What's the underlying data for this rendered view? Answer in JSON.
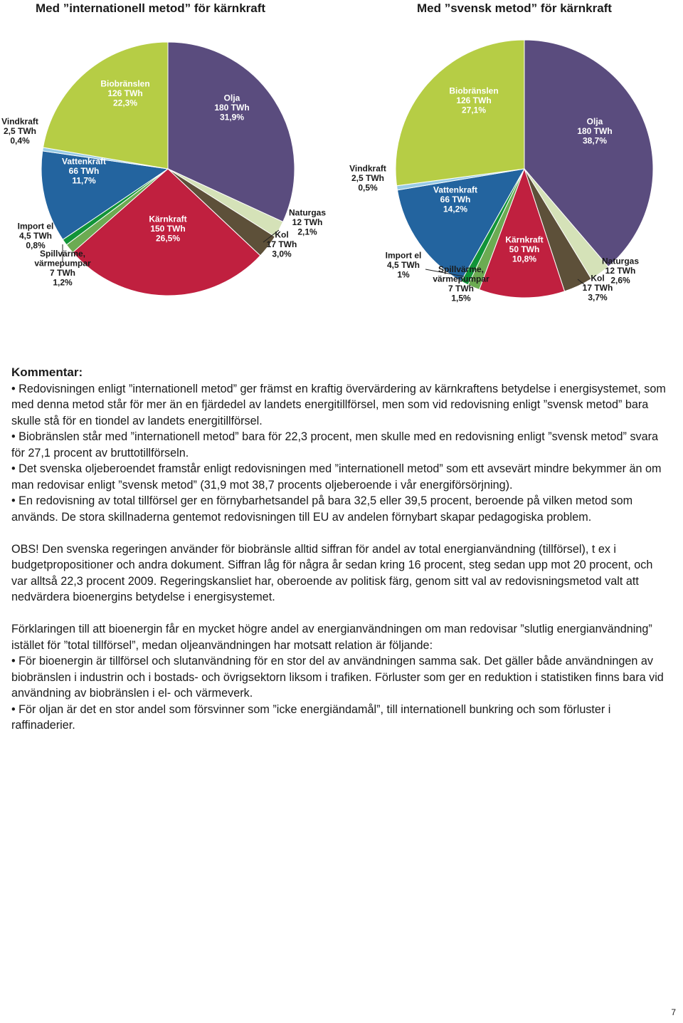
{
  "chart_data": [
    {
      "type": "pie",
      "title": "Med ”internationell metod” för kärnkraft",
      "unit": "TWh",
      "slices": [
        {
          "name": "Olja",
          "value": 180,
          "label_value": "180 TWh",
          "percent": 31.9,
          "percent_text": "31,9%",
          "color": "#5a4c7e"
        },
        {
          "name": "Naturgas",
          "value": 12,
          "label_value": "12 TWh",
          "percent": 2.1,
          "percent_text": "2,1%",
          "color": "#d5e2b8"
        },
        {
          "name": "Kol",
          "value": 17,
          "label_value": "17 TWh",
          "percent": 3.0,
          "percent_text": "3,0%",
          "color": "#5d5039"
        },
        {
          "name": "Kärnkraft",
          "value": 150,
          "label_value": "150 TWh",
          "percent": 26.5,
          "percent_text": "26,5%",
          "color": "#c0203f"
        },
        {
          "name": "Spillvärme, värmepumpar",
          "value": 7,
          "label_value": "7 TWh",
          "percent": 1.2,
          "percent_text": "1,2%",
          "color": "#6cab52"
        },
        {
          "name": "Import el",
          "value": 4.5,
          "label_value": "4,5 TWh",
          "percent": 0.8,
          "percent_text": "0,8%",
          "color": "#119438"
        },
        {
          "name": "Vattenkraft",
          "value": 66,
          "label_value": "66 TWh",
          "percent": 11.7,
          "percent_text": "11,7%",
          "color": "#23649f"
        },
        {
          "name": "Vindkraft",
          "value": 2.5,
          "label_value": "2,5 TWh",
          "percent": 0.4,
          "percent_text": "0,4%",
          "color": "#98cbe6"
        },
        {
          "name": "Biobränslen",
          "value": 126,
          "label_value": "126 TWh",
          "percent": 22.3,
          "percent_text": "22,3%",
          "color": "#b6cd45"
        }
      ]
    },
    {
      "type": "pie",
      "title": "Med ”svensk metod” för kärnkraft",
      "unit": "TWh",
      "slices": [
        {
          "name": "Olja",
          "value": 180,
          "label_value": "180 TWh",
          "percent": 38.7,
          "percent_text": "38,7%",
          "color": "#5a4c7e"
        },
        {
          "name": "Naturgas",
          "value": 12,
          "label_value": "12 TWh",
          "percent": 2.6,
          "percent_text": "2,6%",
          "color": "#d5e2b8"
        },
        {
          "name": "Kol",
          "value": 17,
          "label_value": "17 TWh",
          "percent": 3.7,
          "percent_text": "3,7%",
          "color": "#5d5039"
        },
        {
          "name": "Kärnkraft",
          "value": 50,
          "label_value": "50 TWh",
          "percent": 10.8,
          "percent_text": "10,8%",
          "color": "#c0203f"
        },
        {
          "name": "Spillvärme, värmepumpar",
          "value": 7,
          "label_value": "7 TWh",
          "percent": 1.5,
          "percent_text": "1,5%",
          "color": "#6cab52"
        },
        {
          "name": "Import el",
          "value": 4.5,
          "label_value": "4,5 TWh",
          "percent": 1,
          "percent_text": "1%",
          "color": "#119438"
        },
        {
          "name": "Vattenkraft",
          "value": 66,
          "label_value": "66 TWh",
          "percent": 14.2,
          "percent_text": "14,2%",
          "color": "#23649f"
        },
        {
          "name": "Vindkraft",
          "value": 2.5,
          "label_value": "2,5 TWh",
          "percent": 0.5,
          "percent_text": "0,5%",
          "color": "#98cbe6"
        },
        {
          "name": "Biobränslen",
          "value": 126,
          "label_value": "126 TWh",
          "percent": 27.1,
          "percent_text": "27,1%",
          "color": "#b6cd45"
        }
      ]
    }
  ],
  "text": {
    "kommentar_heading": "Kommentar:",
    "bullets": [
      "• Redovisningen enligt ”internationell metod” ger främst en kraftig övervärdering av kärnkraftens betydelse i energisystemet, som med denna metod står för mer än en fjärdedel av landets energitillförsel, men som vid redovisning enligt ”svensk metod” bara skulle stå för en tiondel av landets energitillförsel.",
      "• Biobränslen står med ”internationell metod” bara för 22,3 procent, men skulle med en redovisning enligt ”svensk metod” svara för 27,1 procent av bruttotillförseln.",
      "• Det svenska oljeberoendet framstår enligt redovisningen med ”internationell metod” som ett avsevärt mindre bekymmer än om man redovisar enligt ”svensk metod” (31,9 mot 38,7 procents oljeberoende i vår energiförsörjning).",
      "• En redovisning av total tillförsel ger en förnybarhetsandel på bara 32,5 eller 39,5 procent, beroende på vilken metod som används. De stora skillnaderna gentemot redovisningen till EU av andelen förnybart skapar pedagogiska problem."
    ],
    "obs": "OBS! Den svenska regeringen använder för biobränsle alltid siffran för andel av total energianvändning (tillförsel), t ex i budgetpropositioner och andra dokument. Siffran låg för några år sedan kring 16 procent, steg sedan upp mot 20 procent, och var alltså 22,3 procent 2009. Regeringskansliet har, oberoende av politisk färg, genom sitt val av redovisningsmetod valt att nedvärdera bioenergins betydelse i energisystemet.",
    "explanation_intro": "Förklaringen till att bioenergin får en mycket högre andel av energianvändningen om man redovisar ”slutlig energianvändning” istället för ”total tillförsel”, medan oljeanvändningen har motsatt relation är följande:",
    "explanation_bullets": [
      "• För bioenergin är tillförsel och slutanvändning för en stor del av användningen samma sak. Det gäller både användningen av biobränslen i industrin och i bostads- och övrigsektorn liksom i trafiken. Förluster som ger en reduktion i statistiken finns bara vid användning av biobränslen i el- och värmeverk.",
      "• För oljan är det en stor andel som försvinner som ”icke energiändamål”, till internationell bunkring och som förluster i raffinaderier."
    ]
  },
  "page_number": "7"
}
